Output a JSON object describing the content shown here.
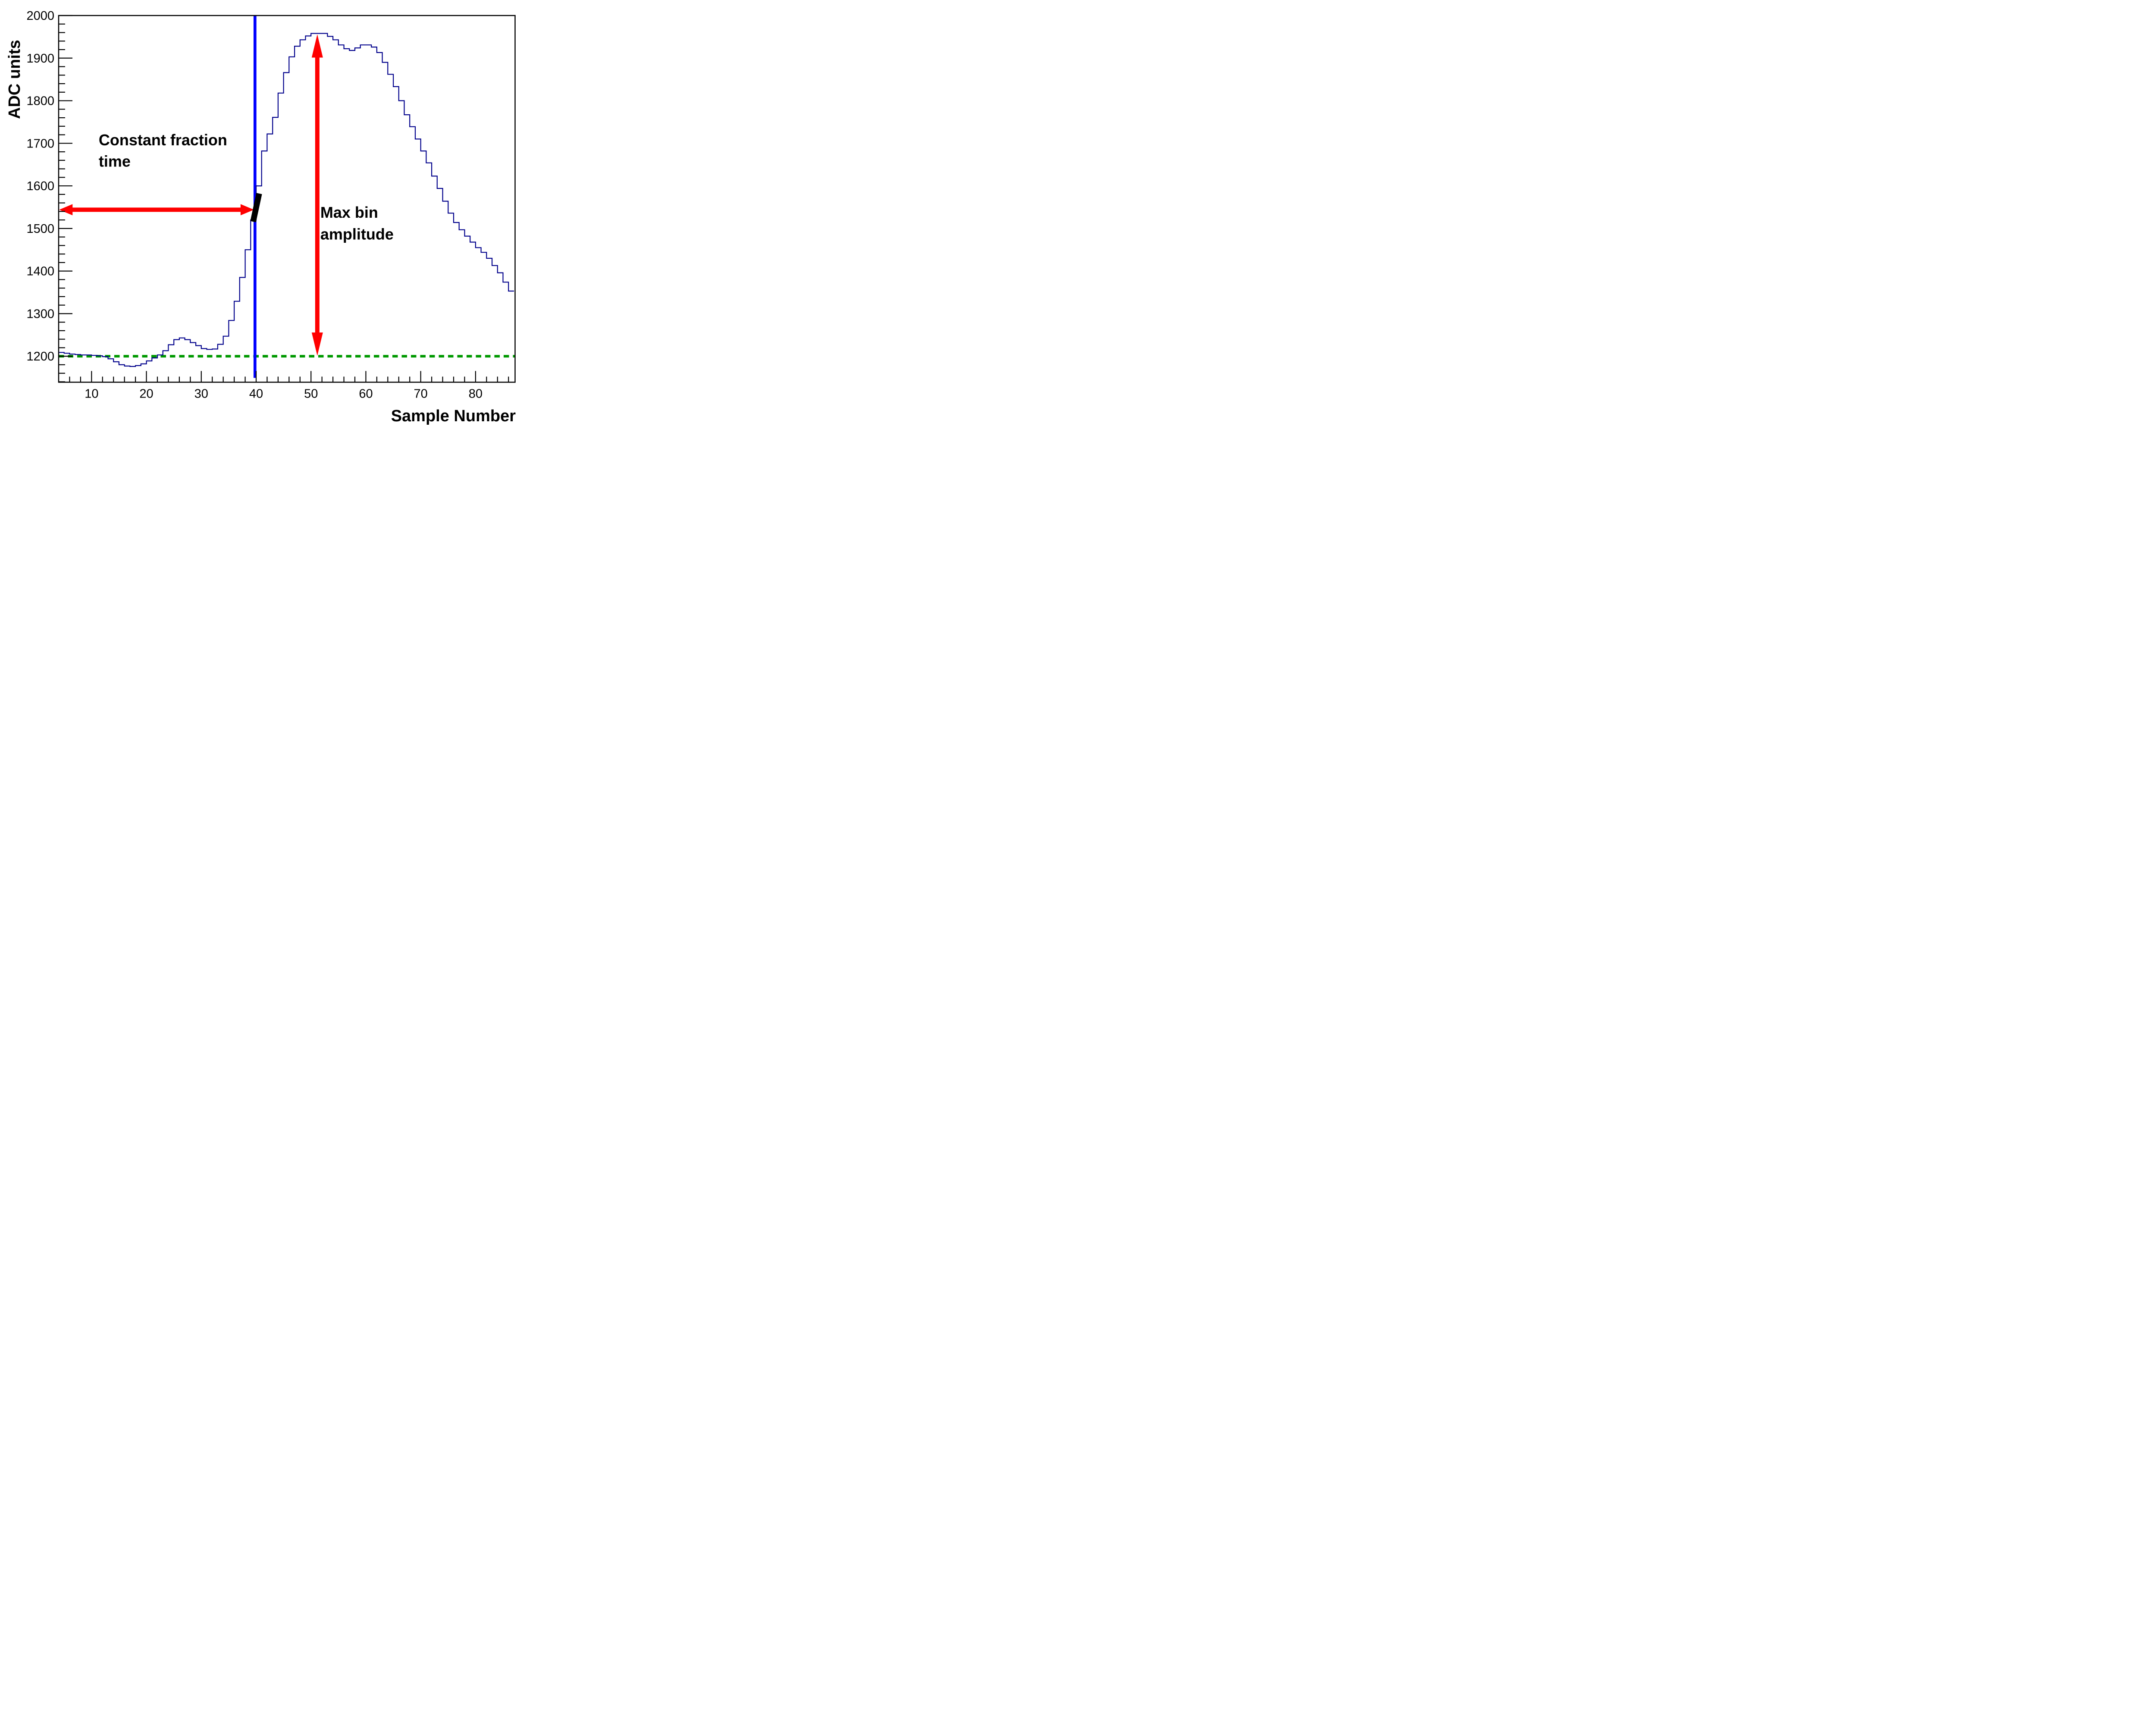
{
  "figure": {
    "background": "#ffffff",
    "frame_color": "#000000"
  },
  "chart_data": {
    "type": "line",
    "subtype": "step-histogram",
    "title": "",
    "xlabel": "Sample Number",
    "ylabel": "ADC units",
    "x_range": [
      4.0,
      87.2
    ],
    "y_range": [
      1139,
      2000
    ],
    "grid": false,
    "legend": null,
    "x_ticks_labeled": [
      10,
      20,
      30,
      40,
      50,
      60,
      70,
      80
    ],
    "x_minor_tick_step": 2,
    "y_ticks_labeled": [
      1200,
      1300,
      1400,
      1500,
      1600,
      1700,
      1800,
      1900,
      2000
    ],
    "y_minor_tick_step": 20,
    "series": [
      {
        "name": "adc-waveform",
        "color": "#00008B",
        "bin_width": 1,
        "first_bin_left_edge": 4,
        "values": [
          1209,
          1207,
          1205,
          1204,
          1203,
          1203,
          1202,
          1201,
          1199,
          1194,
          1187,
          1180,
          1177,
          1176,
          1178,
          1182,
          1189,
          1196,
          1203,
          1213,
          1227,
          1239,
          1243,
          1239,
          1232,
          1225,
          1218,
          1216,
          1217,
          1228,
          1247,
          1284,
          1329,
          1385,
          1450,
          1520,
          1600,
          1682,
          1722,
          1761,
          1818,
          1866,
          1903,
          1928,
          1943,
          1952,
          1958,
          1958,
          1958,
          1951,
          1943,
          1931,
          1922,
          1918,
          1924,
          1931,
          1931,
          1926,
          1913,
          1890,
          1862,
          1833,
          1800,
          1767,
          1739,
          1710,
          1682,
          1654,
          1623,
          1594,
          1564,
          1536,
          1514,
          1497,
          1482,
          1468,
          1455,
          1444,
          1430,
          1413,
          1396,
          1374,
          1353
        ]
      }
    ],
    "pedestal_line": {
      "value": 1200,
      "color": "#009900",
      "style": "dashed"
    },
    "cf_time_line": {
      "x": 39.79,
      "color": "#0000FF"
    },
    "cf_marker": {
      "x1": 39.45,
      "y1": 1516,
      "x2": 40.55,
      "y2": 1582,
      "color": "#000000"
    },
    "arrows": [
      {
        "name": "constant-fraction-arrow",
        "orientation": "horizontal",
        "x1": 4.1,
        "y1": 1544,
        "x2": 39.6,
        "y2": 1544,
        "color": "#FF0000",
        "heads": "both"
      },
      {
        "name": "max-amplitude-arrow",
        "orientation": "vertical",
        "x1": 51.15,
        "y1": 1956,
        "x2": 51.15,
        "y2": 1201,
        "color": "#FF0000",
        "heads": "both"
      }
    ],
    "annotations": [
      {
        "name": "constant-fraction-label-line1",
        "text": "Constant fraction",
        "x": 11.3,
        "y": 1695
      },
      {
        "name": "constant-fraction-label-line2",
        "text": "time",
        "x": 11.3,
        "y": 1645
      },
      {
        "name": "max-bin-label-line1",
        "text": "Max bin",
        "x": 51.7,
        "y": 1525
      },
      {
        "name": "max-bin-label-line2",
        "text": "amplitude",
        "x": 51.7,
        "y": 1474
      }
    ]
  }
}
